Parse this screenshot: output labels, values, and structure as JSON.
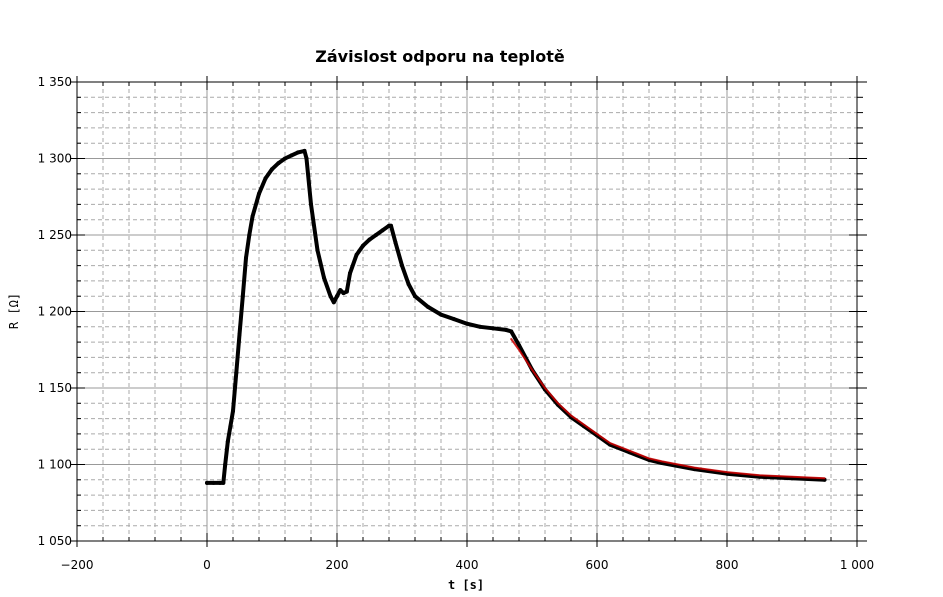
{
  "chart_data": {
    "type": "line",
    "title": "Závislost odporu na teplotě",
    "xlabel": "t [s]",
    "ylabel": "R [Ω]",
    "xlim": [
      -200,
      1000
    ],
    "ylim": [
      1050,
      1350
    ],
    "x_ticks": [
      -200,
      0,
      200,
      400,
      600,
      800,
      1000
    ],
    "x_tick_labels": [
      "−200",
      "0",
      "200",
      "400",
      "600",
      "800",
      "1 000"
    ],
    "y_ticks": [
      1050,
      1100,
      1150,
      1200,
      1250,
      1300,
      1350
    ],
    "y_tick_labels": [
      "1 050",
      "1 100",
      "1 150",
      "1 200",
      "1 250",
      "1 300",
      "1 350"
    ],
    "grid": true,
    "series": [
      {
        "color": "#000000",
        "marker": "dot",
        "x": [
          0,
          10,
          20,
          25,
          28,
          32,
          36,
          40,
          45,
          50,
          55,
          60,
          65,
          70,
          80,
          90,
          100,
          110,
          120,
          130,
          140,
          150,
          153,
          160,
          170,
          180,
          190,
          195,
          200,
          205,
          210,
          215,
          220,
          230,
          240,
          250,
          260,
          270,
          280,
          283,
          290,
          300,
          310,
          320,
          340,
          360,
          380,
          400,
          420,
          440,
          460,
          468,
          480,
          500,
          520,
          540,
          560,
          580,
          600,
          620,
          650,
          680,
          700,
          750,
          800,
          850,
          900,
          950
        ],
        "y": [
          1088,
          1088,
          1088,
          1088,
          1100,
          1115,
          1125,
          1135,
          1160,
          1185,
          1210,
          1235,
          1250,
          1262,
          1277,
          1287,
          1293,
          1297,
          1300,
          1302,
          1304,
          1305,
          1300,
          1270,
          1240,
          1222,
          1210,
          1206,
          1210,
          1214,
          1212,
          1213,
          1225,
          1237,
          1243,
          1247,
          1250,
          1253,
          1256,
          1256,
          1245,
          1230,
          1218,
          1210,
          1203,
          1198,
          1195,
          1192,
          1190,
          1189,
          1188,
          1187,
          1178,
          1162,
          1149,
          1139,
          1131,
          1125,
          1119,
          1113,
          1108,
          1103,
          1101,
          1097,
          1094,
          1092,
          1091,
          1090
        ]
      },
      {
        "color": "#cc0000",
        "marker": "line",
        "x": [
          468,
          480,
          500,
          520,
          540,
          560,
          580,
          600,
          620,
          650,
          680,
          700,
          750,
          800,
          850,
          900,
          950
        ],
        "y": [
          1182,
          1175,
          1162,
          1150,
          1140,
          1132,
          1126,
          1120,
          1114,
          1109,
          1104,
          1102,
          1098,
          1095,
          1093,
          1092,
          1091
        ]
      }
    ]
  }
}
